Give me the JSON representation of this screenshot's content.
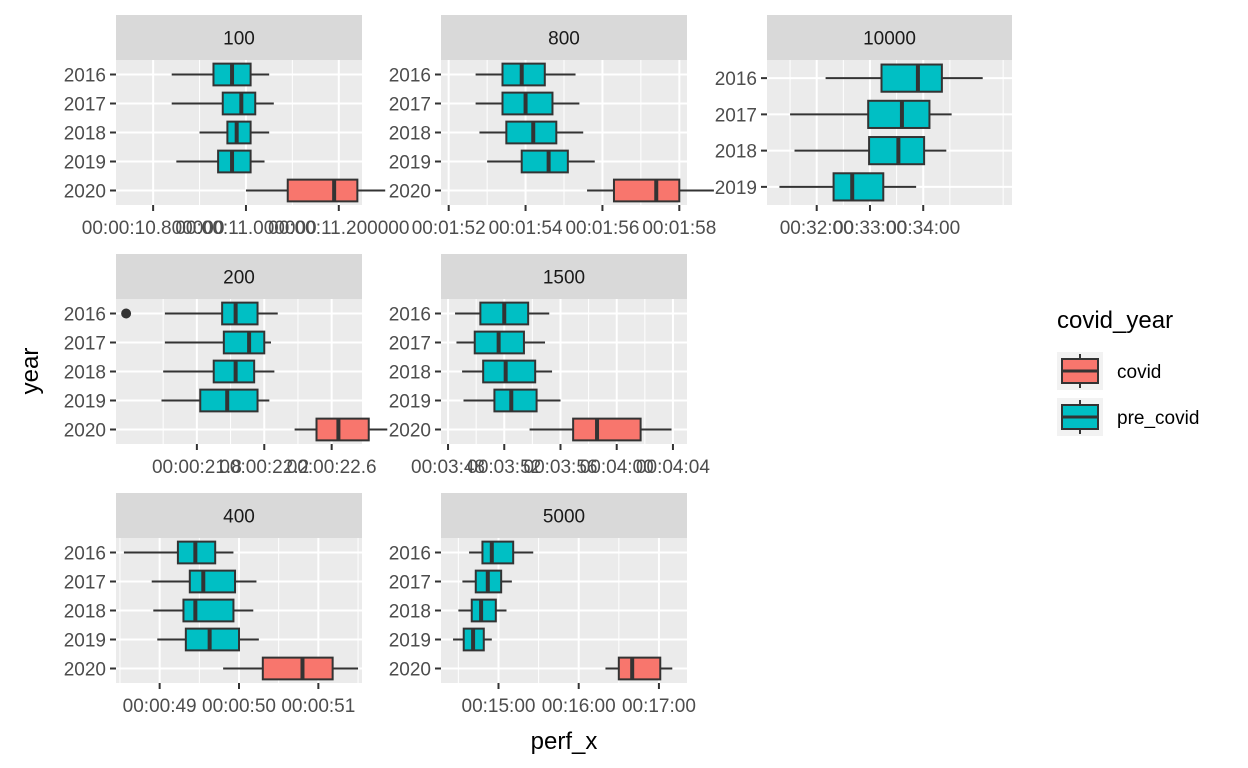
{
  "chart_data": {
    "type": "boxplot",
    "xlabel": "perf_x",
    "ylabel": "year",
    "legend": {
      "title": "covid_year",
      "placement": "right",
      "entries": [
        {
          "label": "covid",
          "color": "#F8766D"
        },
        {
          "label": "pre_covid",
          "color": "#00BFC4"
        }
      ]
    },
    "grid": true,
    "panels": [
      {
        "strip": "100",
        "categories": [
          "2016",
          "2017",
          "2018",
          "2019",
          "2020"
        ],
        "x_tick_labels": [
          "00:00:10.800000",
          "00:00:11.000000",
          "00:00:11.200000"
        ],
        "xlim_text": [
          "00:00:10.72",
          "00:00:11.25"
        ],
        "boxes": [
          {
            "year": "2016",
            "group": "pre_covid",
            "min": 10.84,
            "q1": 10.93,
            "median": 10.97,
            "q3": 11.01,
            "max": 11.05
          },
          {
            "year": "2017",
            "group": "pre_covid",
            "min": 10.84,
            "q1": 10.95,
            "median": 10.99,
            "q3": 11.02,
            "max": 11.06
          },
          {
            "year": "2018",
            "group": "pre_covid",
            "min": 10.9,
            "q1": 10.96,
            "median": 10.98,
            "q3": 11.01,
            "max": 11.05
          },
          {
            "year": "2019",
            "group": "pre_covid",
            "min": 10.85,
            "q1": 10.94,
            "median": 10.97,
            "q3": 11.01,
            "max": 11.04
          },
          {
            "year": "2020",
            "group": "covid",
            "min": 11.0,
            "q1": 11.09,
            "median": 11.19,
            "q3": 11.24,
            "max": 11.3
          }
        ]
      },
      {
        "strip": "800",
        "categories": [
          "2016",
          "2017",
          "2018",
          "2019",
          "2020"
        ],
        "x_tick_labels": [
          "00:01:52",
          "00:01:54",
          "00:01:56",
          "00:01:58"
        ],
        "xlim_text": [
          "00:01:51.8",
          "00:01:58.2"
        ],
        "boxes": [
          {
            "year": "2016",
            "group": "pre_covid",
            "min": 112.7,
            "q1": 113.4,
            "median": 113.9,
            "q3": 114.5,
            "max": 115.3
          },
          {
            "year": "2017",
            "group": "pre_covid",
            "min": 112.7,
            "q1": 113.4,
            "median": 114.0,
            "q3": 114.7,
            "max": 115.4
          },
          {
            "year": "2018",
            "group": "pre_covid",
            "min": 112.8,
            "q1": 113.5,
            "median": 114.2,
            "q3": 114.8,
            "max": 115.5
          },
          {
            "year": "2019",
            "group": "pre_covid",
            "min": 113.0,
            "q1": 113.9,
            "median": 114.6,
            "q3": 115.1,
            "max": 115.8
          },
          {
            "year": "2020",
            "group": "covid",
            "min": 115.6,
            "q1": 116.3,
            "median": 117.4,
            "q3": 118.0,
            "max": 118.9
          }
        ]
      },
      {
        "strip": "10000",
        "categories": [
          "2016",
          "2017",
          "2018",
          "2019"
        ],
        "x_tick_labels": [
          "00:32:00",
          "00:33:00",
          "00:34:00"
        ],
        "xlim_text": [
          "00:31:04",
          "00:35:40"
        ],
        "boxes": [
          {
            "year": "2016",
            "group": "pre_covid",
            "min": 1930,
            "q1": 1993,
            "median": 2034,
            "q3": 2061,
            "max": 2107
          },
          {
            "year": "2017",
            "group": "pre_covid",
            "min": 1890,
            "q1": 1978,
            "median": 2016,
            "q3": 2047,
            "max": 2072
          },
          {
            "year": "2018",
            "group": "pre_covid",
            "min": 1895,
            "q1": 1979,
            "median": 2012,
            "q3": 2041,
            "max": 2066
          },
          {
            "year": "2019",
            "group": "pre_covid",
            "min": 1878,
            "q1": 1939,
            "median": 1960,
            "q3": 1995,
            "max": 2032
          }
        ]
      },
      {
        "strip": "200",
        "categories": [
          "2016",
          "2017",
          "2018",
          "2019",
          "2020"
        ],
        "x_tick_labels": [
          "00:00:21.8",
          "00:00:22.2",
          "00:00:22.6"
        ],
        "xlim_text": [
          "00:00:21.32",
          "00:00:22.78"
        ],
        "boxes": [
          {
            "year": "2016",
            "group": "pre_covid",
            "min": 21.61,
            "q1": 21.95,
            "median": 22.03,
            "q3": 22.16,
            "max": 22.28,
            "outliers": [
              21.38
            ]
          },
          {
            "year": "2017",
            "group": "pre_covid",
            "min": 21.61,
            "q1": 21.96,
            "median": 22.11,
            "q3": 22.2,
            "max": 22.24
          },
          {
            "year": "2018",
            "group": "pre_covid",
            "min": 21.6,
            "q1": 21.9,
            "median": 22.03,
            "q3": 22.14,
            "max": 22.26
          },
          {
            "year": "2019",
            "group": "pre_covid",
            "min": 21.59,
            "q1": 21.82,
            "median": 21.98,
            "q3": 22.16,
            "max": 22.23
          },
          {
            "year": "2020",
            "group": "covid",
            "min": 22.38,
            "q1": 22.51,
            "median": 22.64,
            "q3": 22.82,
            "max": 22.93
          }
        ]
      },
      {
        "strip": "1500",
        "categories": [
          "2016",
          "2017",
          "2018",
          "2019",
          "2020"
        ],
        "x_tick_labels": [
          "00:03:48",
          "00:03:52",
          "00:03:56",
          "00:04:00",
          "00:04:04"
        ],
        "xlim_text": [
          "00:03:47.5",
          "00:04:05"
        ],
        "boxes": [
          {
            "year": "2016",
            "group": "pre_covid",
            "min": 228.5,
            "q1": 230.3,
            "median": 232.0,
            "q3": 233.7,
            "max": 235.2
          },
          {
            "year": "2017",
            "group": "pre_covid",
            "min": 228.6,
            "q1": 229.9,
            "median": 231.6,
            "q3": 233.4,
            "max": 234.9
          },
          {
            "year": "2018",
            "group": "pre_covid",
            "min": 229.0,
            "q1": 230.5,
            "median": 232.1,
            "q3": 234.2,
            "max": 235.4
          },
          {
            "year": "2019",
            "group": "pre_covid",
            "min": 229.1,
            "q1": 231.3,
            "median": 232.5,
            "q3": 234.3,
            "max": 236.0
          },
          {
            "year": "2020",
            "group": "covid",
            "min": 233.8,
            "q1": 236.9,
            "median": 238.6,
            "q3": 241.7,
            "max": 243.9
          }
        ]
      },
      {
        "strip": "400",
        "categories": [
          "2016",
          "2017",
          "2018",
          "2019",
          "2020"
        ],
        "x_tick_labels": [
          "00:00:49",
          "00:00:50",
          "00:00:51"
        ],
        "xlim_text": [
          "00:00:48.45",
          "00:00:51.55"
        ],
        "boxes": [
          {
            "year": "2016",
            "group": "pre_covid",
            "min": 48.55,
            "q1": 49.23,
            "median": 49.45,
            "q3": 49.7,
            "max": 49.93
          },
          {
            "year": "2017",
            "group": "pre_covid",
            "min": 48.9,
            "q1": 49.38,
            "median": 49.55,
            "q3": 49.95,
            "max": 50.22
          },
          {
            "year": "2018",
            "group": "pre_covid",
            "min": 48.92,
            "q1": 49.3,
            "median": 49.45,
            "q3": 49.93,
            "max": 50.18
          },
          {
            "year": "2019",
            "group": "pre_covid",
            "min": 48.97,
            "q1": 49.33,
            "median": 49.63,
            "q3": 50.0,
            "max": 50.25
          },
          {
            "year": "2020",
            "group": "covid",
            "min": 49.8,
            "q1": 50.3,
            "median": 50.8,
            "q3": 51.18,
            "max": 51.5
          }
        ]
      },
      {
        "strip": "5000",
        "categories": [
          "2016",
          "2017",
          "2018",
          "2019",
          "2020"
        ],
        "x_tick_labels": [
          "00:15:00",
          "00:16:00",
          "00:17:00"
        ],
        "xlim_text": [
          "00:14:17",
          "00:17:21"
        ],
        "boxes": [
          {
            "year": "2016",
            "group": "pre_covid",
            "min": 878,
            "q1": 888,
            "median": 895,
            "q3": 911,
            "max": 926
          },
          {
            "year": "2017",
            "group": "pre_covid",
            "min": 873,
            "q1": 883,
            "median": 892,
            "q3": 902,
            "max": 910
          },
          {
            "year": "2018",
            "group": "pre_covid",
            "min": 870,
            "q1": 880,
            "median": 887,
            "q3": 898,
            "max": 906
          },
          {
            "year": "2019",
            "group": "pre_covid",
            "min": 866,
            "q1": 874,
            "median": 881,
            "q3": 889,
            "max": 895
          },
          {
            "year": "2020",
            "group": "covid",
            "min": 980,
            "q1": 990,
            "median": 1000,
            "q3": 1021,
            "max": 1030
          }
        ]
      }
    ]
  }
}
